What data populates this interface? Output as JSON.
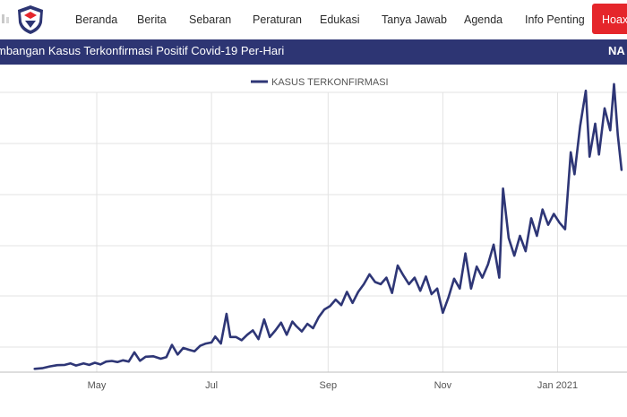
{
  "nav": {
    "items": [
      "Beranda",
      "Berita",
      "Sebaran",
      "Peraturan",
      "Edukasi",
      "Tanya Jawab",
      "Agenda",
      "Info Penting"
    ],
    "hoax_label": "Hoax"
  },
  "banner": {
    "title": "mbangan Kasus Terkonfirmasi Positif Covid-19 Per-Hari",
    "right_label": "NA"
  },
  "colors": {
    "navy": "#2d3573",
    "hoax_red": "#e5262b",
    "line": "#2e3676"
  },
  "chart_data": {
    "type": "line",
    "legend": "KASUS TERKONFIRMASI",
    "legend_position": "top-center",
    "grid": true,
    "x_tick_labels": [
      "May",
      "Jul",
      "Sep",
      "Nov",
      "Jan 2021"
    ],
    "x_range": [
      "2020-03-29",
      "2021-01-31"
    ],
    "y_labels_visible": false,
    "ylim": [
      0,
      13500
    ],
    "series": [
      {
        "name": "KASUS TERKONFIRMASI",
        "points": [
          [
            "2020-03-29",
            150
          ],
          [
            "2020-04-02",
            180
          ],
          [
            "2020-04-06",
            260
          ],
          [
            "2020-04-10",
            320
          ],
          [
            "2020-04-14",
            330
          ],
          [
            "2020-04-17",
            400
          ],
          [
            "2020-04-20",
            300
          ],
          [
            "2020-04-24",
            400
          ],
          [
            "2020-04-27",
            330
          ],
          [
            "2020-04-30",
            430
          ],
          [
            "2020-05-03",
            350
          ],
          [
            "2020-05-06",
            480
          ],
          [
            "2020-05-09",
            510
          ],
          [
            "2020-05-12",
            460
          ],
          [
            "2020-05-15",
            540
          ],
          [
            "2020-05-18",
            480
          ],
          [
            "2020-05-21",
            900
          ],
          [
            "2020-05-24",
            520
          ],
          [
            "2020-05-27",
            700
          ],
          [
            "2020-05-31",
            720
          ],
          [
            "2020-06-04",
            610
          ],
          [
            "2020-06-07",
            680
          ],
          [
            "2020-06-10",
            1240
          ],
          [
            "2020-06-13",
            800
          ],
          [
            "2020-06-16",
            1100
          ],
          [
            "2020-06-19",
            1020
          ],
          [
            "2020-06-22",
            950
          ],
          [
            "2020-06-25",
            1200
          ],
          [
            "2020-06-28",
            1300
          ],
          [
            "2020-07-01",
            1350
          ],
          [
            "2020-07-03",
            1620
          ],
          [
            "2020-07-06",
            1300
          ],
          [
            "2020-07-09",
            2650
          ],
          [
            "2020-07-11",
            1600
          ],
          [
            "2020-07-14",
            1600
          ],
          [
            "2020-07-17",
            1450
          ],
          [
            "2020-07-20",
            1700
          ],
          [
            "2020-07-23",
            1900
          ],
          [
            "2020-07-26",
            1500
          ],
          [
            "2020-07-29",
            2400
          ],
          [
            "2020-08-01",
            1600
          ],
          [
            "2020-08-04",
            1900
          ],
          [
            "2020-08-07",
            2250
          ],
          [
            "2020-08-10",
            1700
          ],
          [
            "2020-08-13",
            2300
          ],
          [
            "2020-08-15",
            2100
          ],
          [
            "2020-08-18",
            1850
          ],
          [
            "2020-08-21",
            2200
          ],
          [
            "2020-08-24",
            2000
          ],
          [
            "2020-08-27",
            2500
          ],
          [
            "2020-08-30",
            2850
          ],
          [
            "2020-09-02",
            3000
          ],
          [
            "2020-09-05",
            3300
          ],
          [
            "2020-09-08",
            3050
          ],
          [
            "2020-09-11",
            3650
          ],
          [
            "2020-09-14",
            3150
          ],
          [
            "2020-09-17",
            3650
          ],
          [
            "2020-09-20",
            4000
          ],
          [
            "2020-09-23",
            4450
          ],
          [
            "2020-09-26",
            4100
          ],
          [
            "2020-09-29",
            4000
          ],
          [
            "2020-10-02",
            4300
          ],
          [
            "2020-10-05",
            3600
          ],
          [
            "2020-10-08",
            4850
          ],
          [
            "2020-10-11",
            4400
          ],
          [
            "2020-10-14",
            4000
          ],
          [
            "2020-10-17",
            4300
          ],
          [
            "2020-10-20",
            3700
          ],
          [
            "2020-10-23",
            4350
          ],
          [
            "2020-10-26",
            3550
          ],
          [
            "2020-10-29",
            3800
          ],
          [
            "2020-11-01",
            2700
          ],
          [
            "2020-11-04",
            3400
          ],
          [
            "2020-11-07",
            4250
          ],
          [
            "2020-11-10",
            3800
          ],
          [
            "2020-11-13",
            5400
          ],
          [
            "2020-11-16",
            3800
          ],
          [
            "2020-11-19",
            4800
          ],
          [
            "2020-11-22",
            4300
          ],
          [
            "2020-11-25",
            4900
          ],
          [
            "2020-11-28",
            5800
          ],
          [
            "2020-12-01",
            4300
          ],
          [
            "2020-12-03",
            8350
          ],
          [
            "2020-12-06",
            6100
          ],
          [
            "2020-12-09",
            5300
          ],
          [
            "2020-12-12",
            6200
          ],
          [
            "2020-12-15",
            5500
          ],
          [
            "2020-12-18",
            7000
          ],
          [
            "2020-12-21",
            6200
          ],
          [
            "2020-12-24",
            7400
          ],
          [
            "2020-12-27",
            6700
          ],
          [
            "2020-12-30",
            7200
          ],
          [
            "2021-01-02",
            6800
          ],
          [
            "2021-01-05",
            6500
          ],
          [
            "2021-01-08",
            10000
          ],
          [
            "2021-01-10",
            9000
          ],
          [
            "2021-01-13",
            11200
          ],
          [
            "2021-01-16",
            12800
          ],
          [
            "2021-01-18",
            9800
          ],
          [
            "2021-01-21",
            11300
          ],
          [
            "2021-01-23",
            9900
          ],
          [
            "2021-01-26",
            12000
          ],
          [
            "2021-01-29",
            11000
          ],
          [
            "2021-01-31",
            13100
          ],
          [
            "2021-02-02",
            10800
          ],
          [
            "2021-02-04",
            9200
          ]
        ]
      }
    ]
  }
}
